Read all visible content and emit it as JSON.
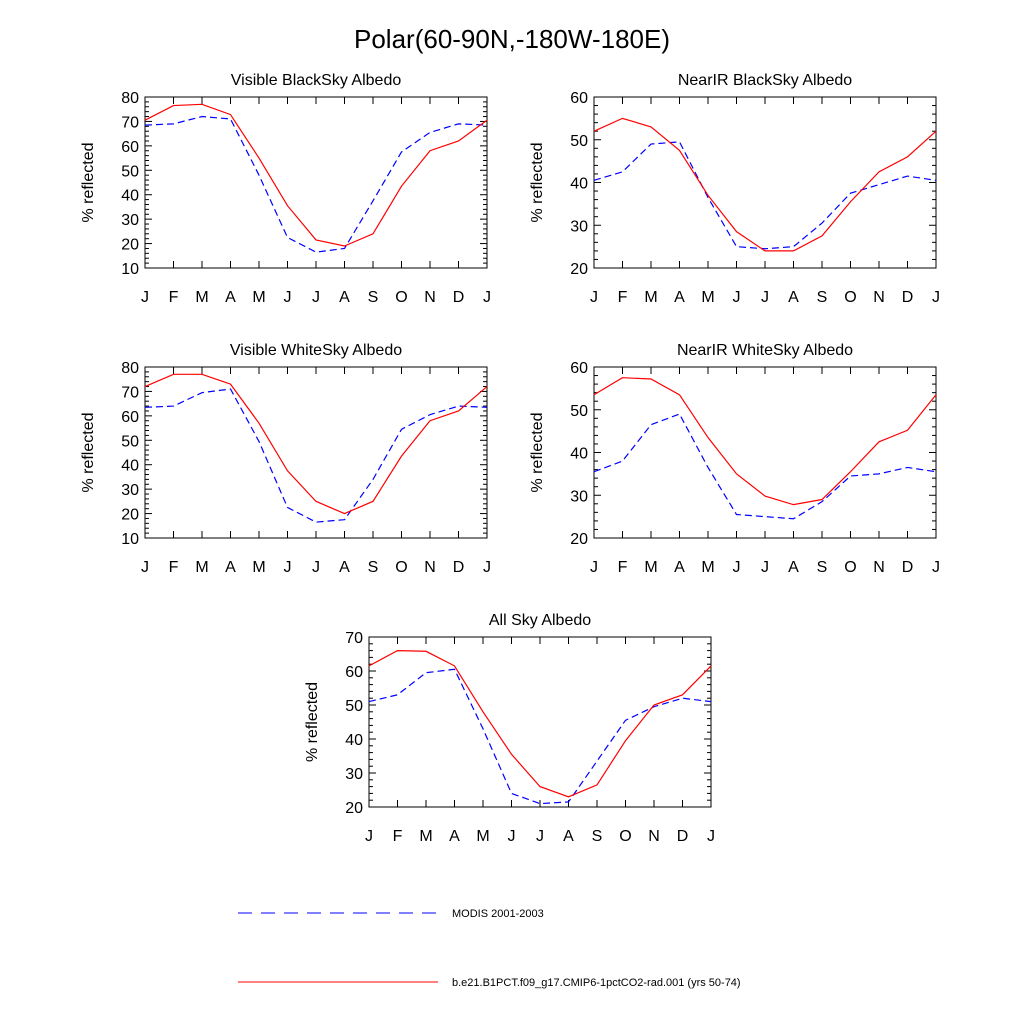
{
  "figure": {
    "title": "Polar(60-90N,-180W-180E)"
  },
  "legend": {
    "entries": [
      {
        "label": "MODIS 2001-2003",
        "color": "#0000ff",
        "style": "dashed"
      },
      {
        "label": "b.e21.B1PCT.f09_g17.CMIP6-1pctCO2-rad.001 (yrs 50-74)",
        "color": "#ff0000",
        "style": "solid"
      }
    ]
  },
  "chart_data": [
    {
      "type": "line",
      "title": "Visible BlackSky Albedo",
      "ylabel": "% reflected",
      "xlabel": "",
      "categories": [
        "J",
        "F",
        "M",
        "A",
        "M",
        "J",
        "J",
        "A",
        "S",
        "O",
        "N",
        "D",
        "J"
      ],
      "ylim": [
        10,
        80
      ],
      "yticks": [
        10,
        20,
        30,
        40,
        50,
        60,
        70,
        80
      ],
      "series": [
        {
          "name": "b.e21.B1PCT.f09_g17.CMIP6-1pctCO2-rad.001 (yrs 50-74)",
          "color": "#ff0000",
          "style": "solid",
          "values": [
            70.5,
            76.5,
            77.0,
            72.8,
            55.0,
            35.5,
            21.5,
            19.0,
            24.0,
            43.5,
            58.0,
            62.0,
            70.5
          ]
        },
        {
          "name": "MODIS 2001-2003",
          "color": "#0000ff",
          "style": "dashed",
          "values": [
            68.5,
            69.0,
            72.0,
            71.0,
            48.0,
            22.5,
            16.5,
            18.0,
            37.5,
            57.5,
            65.5,
            69.0,
            68.5
          ]
        }
      ]
    },
    {
      "type": "line",
      "title": "NearIR BlackSky Albedo",
      "ylabel": "% reflected",
      "xlabel": "",
      "categories": [
        "J",
        "F",
        "M",
        "A",
        "M",
        "J",
        "J",
        "A",
        "S",
        "O",
        "N",
        "D",
        "J"
      ],
      "ylim": [
        20,
        60
      ],
      "yticks": [
        20,
        30,
        40,
        50,
        60
      ],
      "series": [
        {
          "name": "b.e21.B1PCT.f09_g17.CMIP6-1pctCO2-rad.001 (yrs 50-74)",
          "color": "#ff0000",
          "style": "solid",
          "values": [
            52.0,
            55.0,
            53.0,
            47.5,
            37.0,
            28.5,
            24.0,
            24.0,
            27.5,
            35.5,
            42.5,
            46.0,
            52.0
          ]
        },
        {
          "name": "MODIS 2001-2003",
          "color": "#0000ff",
          "style": "dashed",
          "values": [
            40.5,
            42.5,
            49.0,
            49.5,
            36.5,
            25.0,
            24.5,
            25.0,
            30.5,
            37.5,
            39.5,
            41.5,
            40.5
          ]
        }
      ]
    },
    {
      "type": "line",
      "title": "Visible WhiteSky Albedo",
      "ylabel": "% reflected",
      "xlabel": "",
      "categories": [
        "J",
        "F",
        "M",
        "A",
        "M",
        "J",
        "J",
        "A",
        "S",
        "O",
        "N",
        "D",
        "J"
      ],
      "ylim": [
        10,
        80
      ],
      "yticks": [
        10,
        20,
        30,
        40,
        50,
        60,
        70,
        80
      ],
      "series": [
        {
          "name": "b.e21.B1PCT.f09_g17.CMIP6-1pctCO2-rad.001 (yrs 50-74)",
          "color": "#ff0000",
          "style": "solid",
          "values": [
            72.0,
            77.0,
            77.0,
            73.0,
            57.0,
            37.5,
            25.0,
            20.0,
            25.0,
            43.5,
            58.0,
            62.0,
            72.0
          ]
        },
        {
          "name": "MODIS 2001-2003",
          "color": "#0000ff",
          "style": "dashed",
          "values": [
            63.5,
            64.0,
            69.5,
            71.0,
            49.5,
            22.5,
            16.5,
            17.5,
            34.0,
            54.5,
            60.5,
            64.0,
            63.5
          ]
        }
      ]
    },
    {
      "type": "line",
      "title": "NearIR WhiteSky Albedo",
      "ylabel": "% reflected",
      "xlabel": "",
      "categories": [
        "J",
        "F",
        "M",
        "A",
        "M",
        "J",
        "J",
        "A",
        "S",
        "O",
        "N",
        "D",
        "J"
      ],
      "ylim": [
        20,
        60
      ],
      "yticks": [
        20,
        30,
        40,
        50,
        60
      ],
      "series": [
        {
          "name": "b.e21.B1PCT.f09_g17.CMIP6-1pctCO2-rad.001 (yrs 50-74)",
          "color": "#ff0000",
          "style": "solid",
          "values": [
            53.5,
            57.5,
            57.2,
            53.5,
            43.5,
            35.0,
            29.8,
            27.8,
            29.0,
            35.5,
            42.5,
            45.2,
            53.5
          ]
        },
        {
          "name": "MODIS 2001-2003",
          "color": "#0000ff",
          "style": "dashed",
          "values": [
            35.5,
            38.0,
            46.5,
            49.0,
            36.5,
            25.5,
            25.0,
            24.5,
            28.5,
            34.5,
            35.0,
            36.5,
            35.5
          ]
        }
      ]
    },
    {
      "type": "line",
      "title": "All Sky Albedo",
      "ylabel": "% reflected",
      "xlabel": "",
      "categories": [
        "J",
        "F",
        "M",
        "A",
        "M",
        "J",
        "J",
        "A",
        "S",
        "O",
        "N",
        "D",
        "J"
      ],
      "ylim": [
        20,
        70
      ],
      "yticks": [
        20,
        30,
        40,
        50,
        60,
        70
      ],
      "series": [
        {
          "name": "b.e21.B1PCT.f09_g17.CMIP6-1pctCO2-rad.001 (yrs 50-74)",
          "color": "#ff0000",
          "style": "solid",
          "values": [
            61.5,
            66.0,
            65.8,
            61.5,
            48.0,
            35.5,
            26.0,
            23.0,
            26.5,
            39.5,
            50.0,
            53.0,
            61.5
          ]
        },
        {
          "name": "MODIS 2001-2003",
          "color": "#0000ff",
          "style": "dashed",
          "values": [
            51.0,
            53.0,
            59.5,
            60.5,
            43.0,
            24.0,
            21.0,
            21.5,
            33.5,
            45.5,
            49.5,
            52.0,
            51.0
          ]
        }
      ]
    }
  ]
}
